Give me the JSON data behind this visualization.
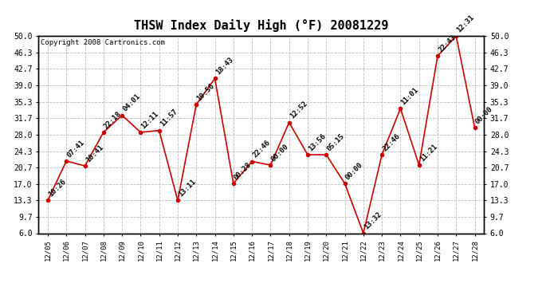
{
  "title": "THSW Index Daily High (°F) 20081229",
  "copyright": "Copyright 2008 Cartronics.com",
  "dates": [
    "12/05",
    "12/06",
    "12/07",
    "12/08",
    "12/09",
    "12/10",
    "12/11",
    "12/12",
    "12/13",
    "12/14",
    "12/15",
    "12/16",
    "12/17",
    "12/18",
    "12/19",
    "12/20",
    "12/21",
    "12/22",
    "12/23",
    "12/24",
    "12/25",
    "12/26",
    "12/27",
    "12/28"
  ],
  "values": [
    13.3,
    22.1,
    21.0,
    28.5,
    32.3,
    28.5,
    28.9,
    13.3,
    34.7,
    40.5,
    17.1,
    22.0,
    21.2,
    30.7,
    23.5,
    23.5,
    17.1,
    6.0,
    23.5,
    33.8,
    21.2,
    45.5,
    50.0,
    29.5
  ],
  "labels": [
    "10:26",
    "07:41",
    "10:41",
    "22:18",
    "04:01",
    "12:11",
    "11:57",
    "13:11",
    "10:56",
    "18:43",
    "00:28",
    "22:46",
    "00:00",
    "12:52",
    "13:56",
    "05:15",
    "00:00",
    "13:32",
    "22:46",
    "11:01",
    "11:21",
    "22:43",
    "12:31",
    "00:00"
  ],
  "ylim": [
    6.0,
    50.0
  ],
  "yticks": [
    6.0,
    9.7,
    13.3,
    17.0,
    20.7,
    24.3,
    28.0,
    31.7,
    35.3,
    39.0,
    42.7,
    46.3,
    50.0
  ],
  "line_color": "#cc0000",
  "marker_color": "#cc0000",
  "bg_color": "#ffffff",
  "grid_color": "#bbbbbb",
  "title_fontsize": 11,
  "annot_fontsize": 6.5,
  "copyright_fontsize": 6.5
}
